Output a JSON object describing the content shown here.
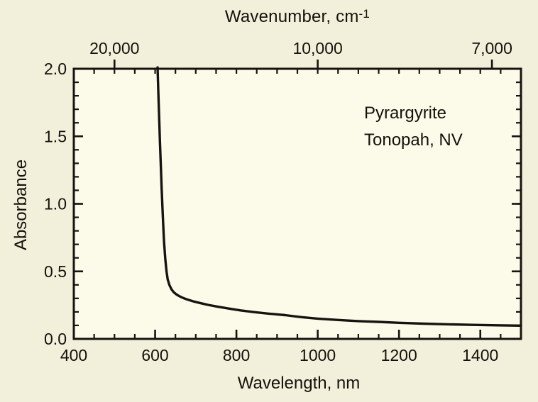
{
  "chart_data": {
    "type": "line",
    "top_axis_label_base": "Wavenumber, cm",
    "top_axis_label_sup": "-1",
    "top_axis_label_full": "Wavenumber, cm⁻¹",
    "xlabel": "Wavelength, nm",
    "ylabel": "Absorbance",
    "annotation": [
      "Pyrargyrite",
      "Tonopah, NV"
    ],
    "xlim": [
      400,
      1500
    ],
    "ylim": [
      0.0,
      2.0
    ],
    "x_major_ticks": [
      400,
      600,
      800,
      1000,
      1200,
      1400
    ],
    "x_tick_labels": [
      "400",
      "600",
      "800",
      "1000",
      "1200",
      "1400"
    ],
    "x_minor_step": 50,
    "y_major_ticks": [
      0.0,
      0.5,
      1.0,
      1.5,
      2.0
    ],
    "y_tick_labels": [
      "0.0",
      "0.5",
      "1.0",
      "1.5",
      "2.0"
    ],
    "y_minor_step": 0.1,
    "top_ticks": [
      {
        "label": "20,000",
        "wavenumber_cm1": 20000,
        "wavelength_nm": 500
      },
      {
        "label": "10,000",
        "wavenumber_cm1": 10000,
        "wavelength_nm": 1000
      },
      {
        "label": "7,000",
        "wavenumber_cm1": 7000,
        "wavelength_nm": 1428.6
      }
    ],
    "grid": false,
    "legend": "none",
    "series": [
      {
        "name": "Pyrargyrite absorbance",
        "x": [
          606,
          608,
          610,
          612,
          614,
          616,
          618,
          620,
          622,
          625,
          628,
          631,
          635,
          640,
          646,
          653,
          661,
          670,
          681,
          695,
          710,
          730,
          755,
          780,
          810,
          845,
          880,
          920,
          960,
          1000,
          1050,
          1100,
          1150,
          1200,
          1260,
          1320,
          1380,
          1440,
          1500
        ],
        "y": [
          2.01,
          1.82,
          1.63,
          1.45,
          1.28,
          1.12,
          0.97,
          0.84,
          0.72,
          0.59,
          0.5,
          0.44,
          0.4,
          0.368,
          0.345,
          0.328,
          0.314,
          0.302,
          0.29,
          0.277,
          0.266,
          0.252,
          0.238,
          0.225,
          0.211,
          0.198,
          0.187,
          0.176,
          0.161,
          0.15,
          0.14,
          0.132,
          0.126,
          0.119,
          0.113,
          0.108,
          0.104,
          0.101,
          0.098
        ]
      }
    ],
    "colors": {
      "outer_background": "#f2efda",
      "plot_background": "#fcfae8",
      "axis": "#171310",
      "curve": "#171310",
      "text": "#14110c"
    }
  }
}
